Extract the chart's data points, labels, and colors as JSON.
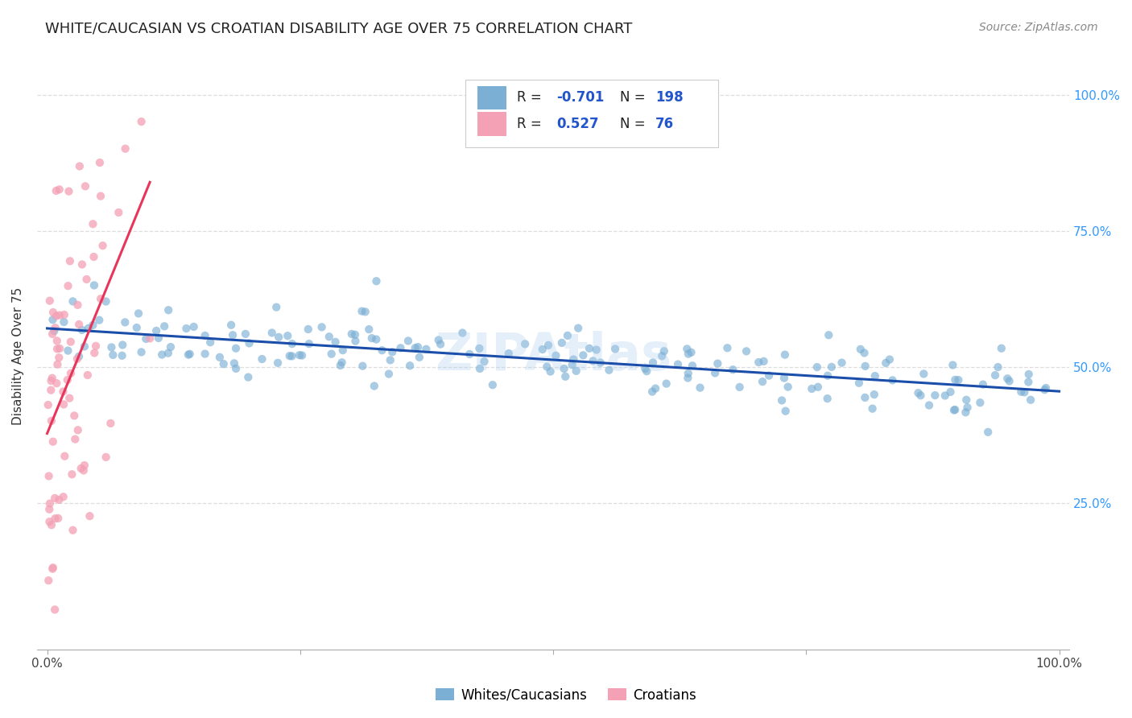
{
  "title": "WHITE/CAUCASIAN VS CROATIAN DISABILITY AGE OVER 75 CORRELATION CHART",
  "source": "Source: ZipAtlas.com",
  "ylabel": "Disability Age Over 75",
  "xlim": [
    0,
    1
  ],
  "ylim": [
    0,
    1
  ],
  "xtick_labels": [
    "0.0%",
    "",
    "",
    "",
    "100.0%"
  ],
  "ytick_labels_right": [
    "25.0%",
    "50.0%",
    "75.0%",
    "100.0%"
  ],
  "blue_R": "-0.701",
  "blue_N": "198",
  "pink_R": "0.527",
  "pink_N": "76",
  "blue_color": "#7BAFD4",
  "pink_color": "#F4A0B5",
  "trend_blue_color": "#1A4EAA",
  "trend_pink_color": "#E8365A",
  "legend_label_blue": "Whites/Caucasians",
  "legend_label_pink": "Croatians",
  "watermark": "ZIPAtlas",
  "title_fontsize": 13,
  "source_fontsize": 10,
  "axis_label_fontsize": 11,
  "tick_fontsize": 11,
  "legend_fontsize": 12,
  "stat_color": "#2255CC",
  "blue_N_int": 198,
  "pink_N_int": 76
}
